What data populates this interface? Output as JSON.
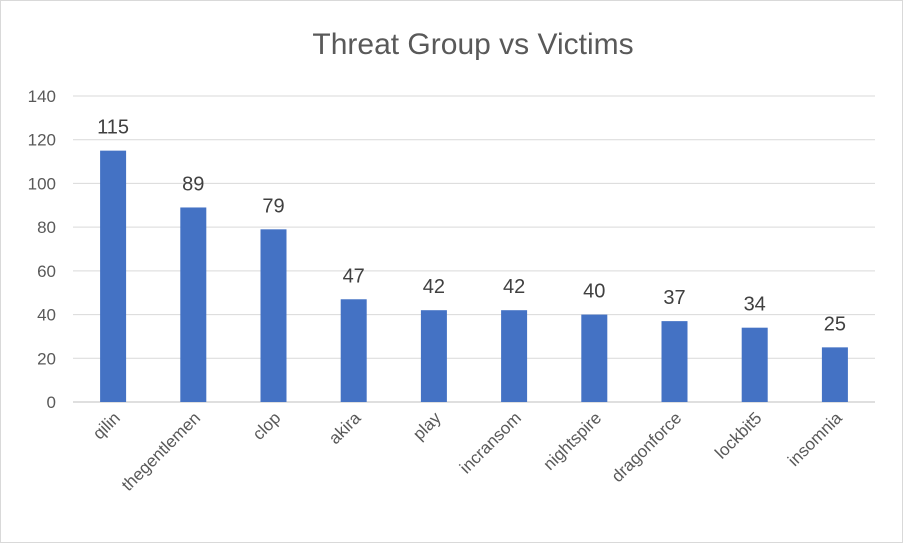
{
  "chart_data": {
    "type": "bar",
    "title": "Threat Group vs Victims",
    "xlabel": "",
    "ylabel": "",
    "categories": [
      "qilin",
      "thegentlemen",
      "clop",
      "akira",
      "play",
      "incransom",
      "nightspire",
      "dragonforce",
      "lockbit5",
      "insomnia"
    ],
    "values": [
      115,
      89,
      79,
      47,
      42,
      42,
      40,
      37,
      34,
      25
    ],
    "ylim": [
      0,
      140
    ],
    "yticks": [
      0,
      20,
      40,
      60,
      80,
      100,
      120,
      140
    ],
    "grid": true,
    "legend": "none",
    "bar_color": "#4472c4"
  }
}
